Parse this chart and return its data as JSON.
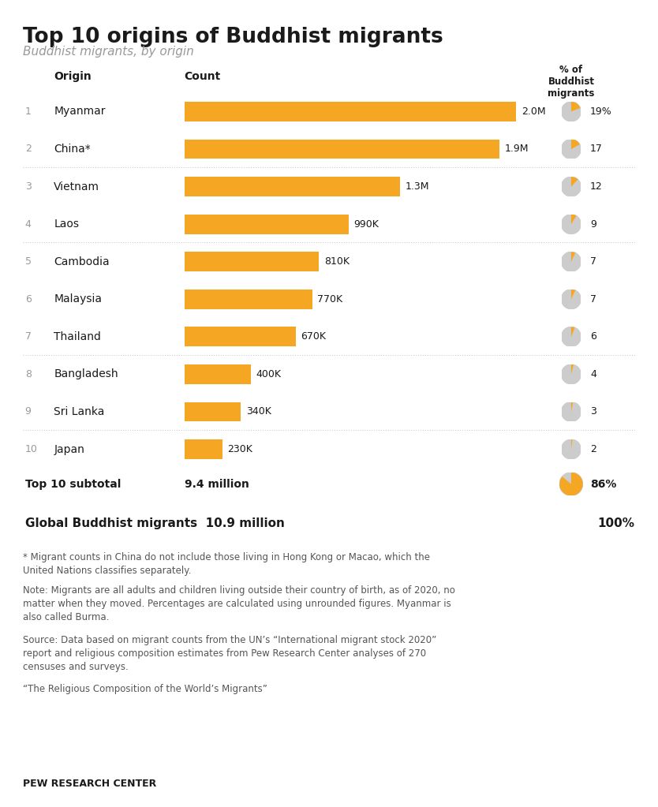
{
  "title": "Top 10 origins of Buddhist migrants",
  "subtitle": "Buddhist migrants, by origin",
  "col_origin": "Origin",
  "col_count": "Count",
  "col_pct_header": "% of\nBuddhist\nmigrants",
  "countries": [
    "Myanmar",
    "China*",
    "Vietnam",
    "Laos",
    "Cambodia",
    "Malaysia",
    "Thailand",
    "Bangladesh",
    "Sri Lanka",
    "Japan"
  ],
  "ranks": [
    1,
    2,
    3,
    4,
    5,
    6,
    7,
    8,
    9,
    10
  ],
  "values": [
    2000000,
    1900000,
    1300000,
    990000,
    810000,
    770000,
    670000,
    400000,
    340000,
    230000
  ],
  "labels": [
    "2.0M",
    "1.9M",
    "1.3M",
    "990K",
    "810K",
    "770K",
    "670K",
    "400K",
    "340K",
    "230K"
  ],
  "pct": [
    19,
    17,
    12,
    9,
    7,
    7,
    6,
    4,
    3,
    2
  ],
  "pct_labels": [
    "19%",
    "17",
    "12",
    "9",
    "7",
    "7",
    "6",
    "4",
    "3",
    "2"
  ],
  "bar_color": "#F5A623",
  "subtotal_label": "Top 10 subtotal",
  "subtotal_count": "9.4 million",
  "subtotal_pct": "86%",
  "subtotal_pct_val": 86,
  "global_label": "Global Buddhist migrants",
  "global_count": "10.9 million",
  "global_pct": "100%",
  "note1": "* Migrant counts in China do not include those living in Hong Kong or Macao, which the\nUnited Nations classifies separately.",
  "note2": "Note: Migrants are all adults and children living outside their country of birth, as of 2020, no\nmatter when they moved. Percentages are calculated using unrounded figures. Myanmar is\nalso called Burma.",
  "note3": "Source: Data based on migrant counts from the UN’s “International migrant stock 2020”\nreport and religious composition estimates from Pew Research Center analyses of 270\ncensuses and surveys.",
  "note4": "“The Religious Composition of the World’s Migrants”",
  "footer": "PEW RESEARCH CENTER",
  "text_color": "#1a1a1a",
  "note_color": "#555555",
  "rank_color": "#999999",
  "sep_color": "#cccccc",
  "line_color": "#333333",
  "bg_color": "#ffffff",
  "max_value": 2100000
}
